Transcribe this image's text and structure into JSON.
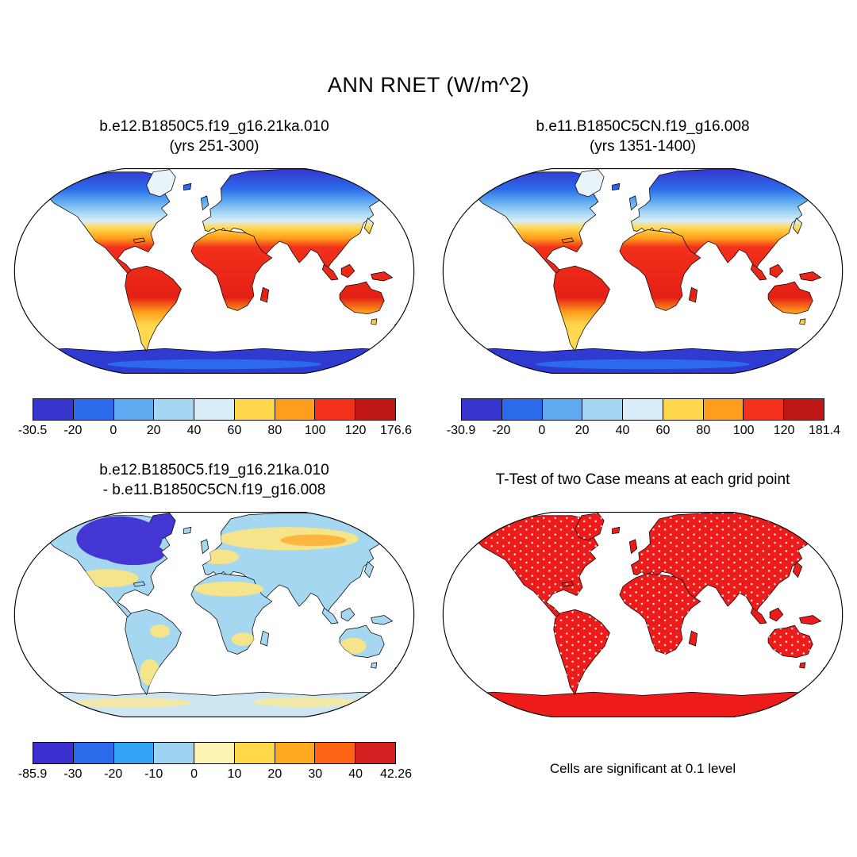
{
  "figure": {
    "title": "ANN RNET (W/m^2)",
    "background": "#ffffff"
  },
  "panels": {
    "top_left": {
      "title_line1": "b.e12.B1850C5.f19_g16.21ka.010",
      "title_line2": "(yrs 251-300)",
      "colorbar": {
        "colors": [
          "#3636cf",
          "#2b6beb",
          "#5fa9f1",
          "#a5d6f3",
          "#d8edf8",
          "#ffd84d",
          "#ff9d1c",
          "#f2301b",
          "#bf1616"
        ],
        "labels": [
          "-30.5",
          "-20",
          "0",
          "20",
          "40",
          "60",
          "80",
          "100",
          "120",
          "176.6"
        ]
      }
    },
    "top_right": {
      "title_line1": "b.e11.B1850C5CN.f19_g16.008",
      "title_line2": "(yrs 1351-1400)",
      "colorbar": {
        "colors": [
          "#3636cf",
          "#2b6beb",
          "#5fa9f1",
          "#a5d6f3",
          "#d8edf8",
          "#ffd84d",
          "#ff9d1c",
          "#f2301b",
          "#bf1616"
        ],
        "labels": [
          "-30.9",
          "-20",
          "0",
          "20",
          "40",
          "60",
          "80",
          "100",
          "120",
          "181.4"
        ]
      }
    },
    "bottom_left": {
      "title_line1": "b.e12.B1850C5.f19_g16.21ka.010",
      "title_line2": "- b.e11.B1850C5CN.f19_g16.008",
      "colorbar": {
        "colors": [
          "#3b2fd0",
          "#2b6beb",
          "#31a3f5",
          "#9ed4f2",
          "#fdf3b4",
          "#ffd94a",
          "#ffaa1e",
          "#ff6414",
          "#d32020"
        ],
        "labels": [
          "-85.9",
          "-30",
          "-20",
          "-10",
          "0",
          "10",
          "20",
          "30",
          "40",
          "42.26"
        ]
      }
    },
    "bottom_right": {
      "title_line1": "T-Test of two Case means at each grid point",
      "caption": "Cells are significant at 0.1 level",
      "significant_color": "#ee1b1b"
    }
  },
  "chart_data": [
    {
      "type": "heatmap",
      "subtype": "global-map",
      "projection": "Robinson",
      "variable": "ANN RNET (W/m^2)",
      "title": "b.e12.B1850C5.f19_g16.21ka.010 (yrs 251-300)",
      "min": -30.5,
      "max": 176.6,
      "colorbar_ticks": [
        -30.5,
        -20,
        0,
        20,
        40,
        60,
        80,
        100,
        120,
        176.6
      ],
      "colorbar_colors": [
        "#3636cf",
        "#2b6beb",
        "#5fa9f1",
        "#a5d6f3",
        "#d8edf8",
        "#ffd84d",
        "#ff9d1c",
        "#f2301b",
        "#bf1616"
      ],
      "pattern": "high northern latitudes blue (negative/low), midlatitudes pale blue to yellow, subtropics orange, tropics red, Antarctica deep blue"
    },
    {
      "type": "heatmap",
      "subtype": "global-map",
      "projection": "Robinson",
      "variable": "ANN RNET (W/m^2)",
      "title": "b.e11.B1850C5CN.f19_g16.008 (yrs 1351-1400)",
      "min": -30.9,
      "max": 181.4,
      "colorbar_ticks": [
        -30.9,
        -20,
        0,
        20,
        40,
        60,
        80,
        100,
        120,
        181.4
      ],
      "colorbar_colors": [
        "#3636cf",
        "#2b6beb",
        "#5fa9f1",
        "#a5d6f3",
        "#d8edf8",
        "#ffd84d",
        "#ff9d1c",
        "#f2301b",
        "#bf1616"
      ],
      "pattern": "high northern latitudes blue, midlatitudes pale blue to yellow, subtropics orange, tropics red, Antarctica deep blue"
    },
    {
      "type": "heatmap",
      "subtype": "global-map-difference",
      "projection": "Robinson",
      "variable": "ANN RNET difference (W/m^2)",
      "title": "b.e12.B1850C5.f19_g16.21ka.010 - b.e11.B1850C5CN.f19_g16.008",
      "min": -85.9,
      "max": 42.26,
      "colorbar_ticks": [
        -85.9,
        -30,
        -20,
        -10,
        0,
        10,
        20,
        30,
        40,
        42.26
      ],
      "colorbar_colors": [
        "#3b2fd0",
        "#2b6beb",
        "#31a3f5",
        "#9ed4f2",
        "#fdf3b4",
        "#ffd94a",
        "#ffaa1e",
        "#ff6414",
        "#d32020"
      ],
      "pattern": "strong negative (dark blue) over northern North America and Greenland ice-sheet region, weak negative (light blue) over most land, scattered weak positive (yellow) over Eurasia, US, Sahara and Australia"
    },
    {
      "type": "heatmap",
      "subtype": "significance-map",
      "projection": "Robinson",
      "title": "T-Test of two Case means at each grid point",
      "note": "Cells are significant at 0.1 level",
      "significant_color": "#ee1b1b",
      "pattern": "nearly all land cells significant (solid red) with scattered non-significant white cells"
    }
  ]
}
